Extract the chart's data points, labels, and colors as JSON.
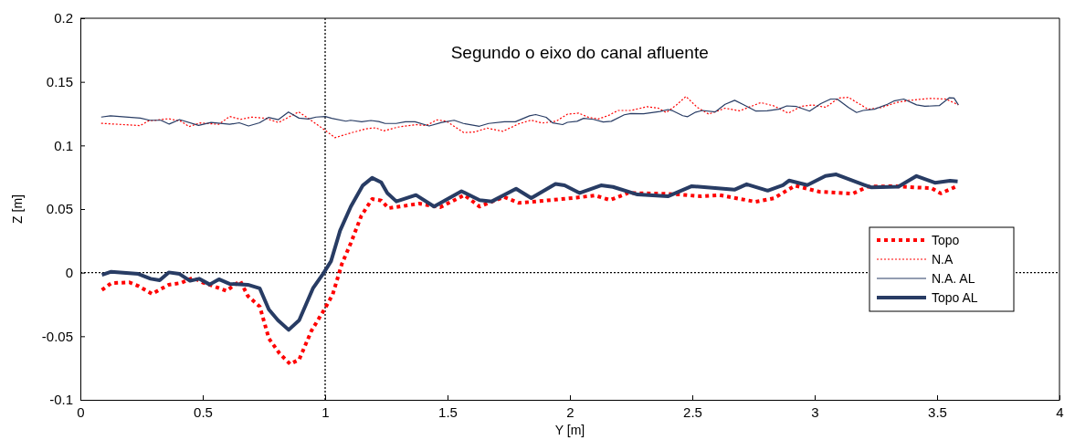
{
  "chart_data": {
    "type": "line",
    "xlabel": "Y [m]",
    "ylabel": "Z [m]",
    "annotations": [
      "Segundo o eixo do canal afluente"
    ],
    "xlim": [
      0,
      4
    ],
    "xticks": [
      0,
      0.5,
      1,
      1.5,
      2,
      2.5,
      3,
      3.5,
      4
    ],
    "ylim": [
      -0.1,
      0.2
    ],
    "yticks": [
      -0.1,
      -0.05,
      0,
      0.05,
      0.1,
      0.15,
      0.2
    ],
    "legend": "right",
    "grid": false,
    "marker": "none",
    "ref_lines": [
      {
        "axis": "x",
        "value": 1,
        "color": "#000000",
        "line_style": "dotted"
      },
      {
        "axis": "y",
        "value": 0,
        "color": "#000000",
        "line_style": "dotted"
      }
    ],
    "series": [
      {
        "name": "Topo",
        "color": "#ff0000",
        "line_style": "dotted",
        "x": [
          0.088,
          0.126,
          0.2,
          0.237,
          0.293,
          0.361,
          0.411,
          0.461,
          0.498,
          0.535,
          0.597,
          0.653,
          0.684,
          0.733,
          0.77,
          0.814,
          0.857,
          0.894,
          0.944,
          1.0,
          1.031,
          1.068,
          1.105,
          1.148,
          1.192,
          1.229,
          1.259,
          1.304,
          1.383,
          1.47,
          1.569,
          1.631,
          1.73,
          1.792,
          1.904,
          2.028,
          2.102,
          2.164,
          2.238,
          2.375,
          2.449,
          2.535,
          2.61,
          2.759,
          2.833,
          2.92,
          3.019,
          3.155,
          3.217,
          3.329,
          3.404,
          3.478,
          3.515,
          3.577
        ],
        "values": [
          -0.0136,
          -0.0083,
          -0.0076,
          -0.0105,
          -0.0167,
          -0.0095,
          -0.0081,
          -0.004,
          -0.0076,
          -0.01,
          -0.0143,
          -0.0064,
          -0.0183,
          -0.0267,
          -0.0517,
          -0.0636,
          -0.0719,
          -0.0683,
          -0.0457,
          -0.0279,
          -0.0171,
          0.0067,
          0.0233,
          0.0448,
          0.0579,
          0.0567,
          0.0507,
          0.0519,
          0.0543,
          0.0514,
          0.061,
          0.0519,
          0.0595,
          0.0548,
          0.0567,
          0.059,
          0.0607,
          0.0571,
          0.0626,
          0.0621,
          0.0614,
          0.06,
          0.061,
          0.0557,
          0.0585,
          0.0684,
          0.0636,
          0.0621,
          0.0676,
          0.068,
          0.0671,
          0.0664,
          0.0623,
          0.0676
        ]
      },
      {
        "name": "N.A",
        "color": "#ff0000",
        "line_style": "dotted",
        "x": [
          0.085,
          0.175,
          0.245,
          0.277,
          0.361,
          0.412,
          0.444,
          0.489,
          0.565,
          0.61,
          0.655,
          0.7,
          0.758,
          0.809,
          0.892,
          0.931,
          1.001,
          1.04,
          1.104,
          1.168,
          1.207,
          1.239,
          1.296,
          1.373,
          1.412,
          1.457,
          1.495,
          1.566,
          1.61,
          1.662,
          1.726,
          1.79,
          1.841,
          1.886,
          1.943,
          1.99,
          2.036,
          2.076,
          2.115,
          2.156,
          2.196,
          2.249,
          2.315,
          2.361,
          2.394,
          2.435,
          2.474,
          2.52,
          2.567,
          2.634,
          2.693,
          2.78,
          2.833,
          2.892,
          2.946,
          2.992,
          3.045,
          3.098,
          3.138,
          3.218,
          3.271,
          3.337,
          3.39,
          3.47,
          3.536,
          3.587
        ],
        "values": [
          0.1174,
          0.1164,
          0.1156,
          0.1192,
          0.121,
          0.119,
          0.1148,
          0.1177,
          0.1166,
          0.1228,
          0.1205,
          0.1223,
          0.1213,
          0.118,
          0.1264,
          0.1213,
          0.1118,
          0.1061,
          0.1098,
          0.1131,
          0.1139,
          0.1114,
          0.1144,
          0.1164,
          0.1156,
          0.1201,
          0.1191,
          0.1101,
          0.1106,
          0.1136,
          0.1111,
          0.1169,
          0.1199,
          0.1176,
          0.119,
          0.1246,
          0.1254,
          0.1221,
          0.1208,
          0.1234,
          0.1275,
          0.1275,
          0.1305,
          0.1293,
          0.1259,
          0.1318,
          0.1385,
          0.13,
          0.1246,
          0.1293,
          0.1272,
          0.1337,
          0.1311,
          0.1254,
          0.1308,
          0.1318,
          0.13,
          0.1373,
          0.1378,
          0.1285,
          0.1298,
          0.1339,
          0.1355,
          0.137,
          0.1365,
          0.1319
        ]
      },
      {
        "name": "N.A. AL",
        "color": "#283c64",
        "line_style": "solid",
        "x": [
          0.085,
          0.123,
          0.245,
          0.284,
          0.329,
          0.363,
          0.405,
          0.483,
          0.534,
          0.61,
          0.649,
          0.687,
          0.732,
          0.768,
          0.809,
          0.85,
          0.893,
          0.931,
          0.963,
          1.001,
          1.027,
          1.085,
          1.104,
          1.149,
          1.187,
          1.219,
          1.245,
          1.29,
          1.328,
          1.367,
          1.425,
          1.476,
          1.527,
          1.565,
          1.63,
          1.668,
          1.732,
          1.777,
          1.835,
          1.86,
          1.903,
          1.93,
          1.97,
          1.99,
          2.029,
          2.056,
          2.096,
          2.136,
          2.169,
          2.222,
          2.249,
          2.301,
          2.368,
          2.401,
          2.421,
          2.461,
          2.481,
          2.514,
          2.541,
          2.594,
          2.634,
          2.673,
          2.706,
          2.76,
          2.806,
          2.853,
          2.886,
          2.926,
          2.979,
          3.025,
          3.065,
          3.092,
          3.138,
          3.171,
          3.198,
          3.244,
          3.297,
          3.323,
          3.364,
          3.416,
          3.45,
          3.509,
          3.55,
          3.569,
          3.587
        ],
        "values": [
          0.1223,
          0.1233,
          0.1215,
          0.1198,
          0.1198,
          0.1168,
          0.1203,
          0.1158,
          0.1181,
          0.1166,
          0.1178,
          0.1153,
          0.1178,
          0.122,
          0.1203,
          0.1263,
          0.1215,
          0.1208,
          0.1223,
          0.1228,
          0.1213,
          0.1191,
          0.1198,
          0.1186,
          0.1196,
          0.1188,
          0.1173,
          0.1173,
          0.1186,
          0.1186,
          0.1153,
          0.1181,
          0.1198,
          0.1173,
          0.1151,
          0.1173,
          0.1186,
          0.1186,
          0.1233,
          0.1243,
          0.1221,
          0.1177,
          0.1164,
          0.1182,
          0.119,
          0.1213,
          0.1205,
          0.1185,
          0.119,
          0.1241,
          0.1251,
          0.1249,
          0.1267,
          0.1282,
          0.1272,
          0.1234,
          0.1226,
          0.1262,
          0.1275,
          0.1264,
          0.1324,
          0.1355,
          0.1324,
          0.127,
          0.1272,
          0.1285,
          0.1311,
          0.1306,
          0.127,
          0.1329,
          0.1365,
          0.1365,
          0.1298,
          0.1259,
          0.1275,
          0.1285,
          0.1324,
          0.1349,
          0.1365,
          0.1319,
          0.1308,
          0.1313,
          0.1375,
          0.1373,
          0.1319
        ]
      },
      {
        "name": "Topo AL",
        "color": "#283c64",
        "line_style": "solid",
        "x": [
          0.088,
          0.126,
          0.237,
          0.287,
          0.324,
          0.361,
          0.405,
          0.448,
          0.485,
          0.528,
          0.566,
          0.609,
          0.684,
          0.733,
          0.77,
          0.807,
          0.851,
          0.894,
          0.95,
          0.993,
          1.024,
          1.061,
          1.105,
          1.154,
          1.192,
          1.229,
          1.254,
          1.291,
          1.371,
          1.445,
          1.557,
          1.631,
          1.681,
          1.78,
          1.842,
          1.941,
          1.978,
          2.04,
          2.127,
          2.176,
          2.276,
          2.4,
          2.498,
          2.672,
          2.722,
          2.808,
          2.87,
          2.895,
          2.97,
          3.044,
          3.088,
          3.205,
          3.23,
          3.342,
          3.416,
          3.491,
          3.553,
          3.584
        ],
        "values": [
          -0.0017,
          0.0007,
          -0.001,
          -0.0048,
          -0.006,
          0.0002,
          -0.001,
          -0.0064,
          -0.0048,
          -0.0093,
          -0.0052,
          -0.0088,
          -0.0095,
          -0.0124,
          -0.029,
          -0.0374,
          -0.045,
          -0.0374,
          -0.0124,
          -0.0005,
          0.009,
          0.033,
          0.052,
          0.0686,
          0.0745,
          0.071,
          0.0626,
          0.056,
          0.061,
          0.052,
          0.064,
          0.057,
          0.056,
          0.066,
          0.0586,
          0.0698,
          0.0686,
          0.0626,
          0.0686,
          0.0674,
          0.0614,
          0.06,
          0.068,
          0.0652,
          0.0695,
          0.0645,
          0.0688,
          0.0724,
          0.0688,
          0.076,
          0.0772,
          0.0688,
          0.0671,
          0.0676,
          0.076,
          0.0707,
          0.0722,
          0.0717
        ]
      }
    ]
  }
}
